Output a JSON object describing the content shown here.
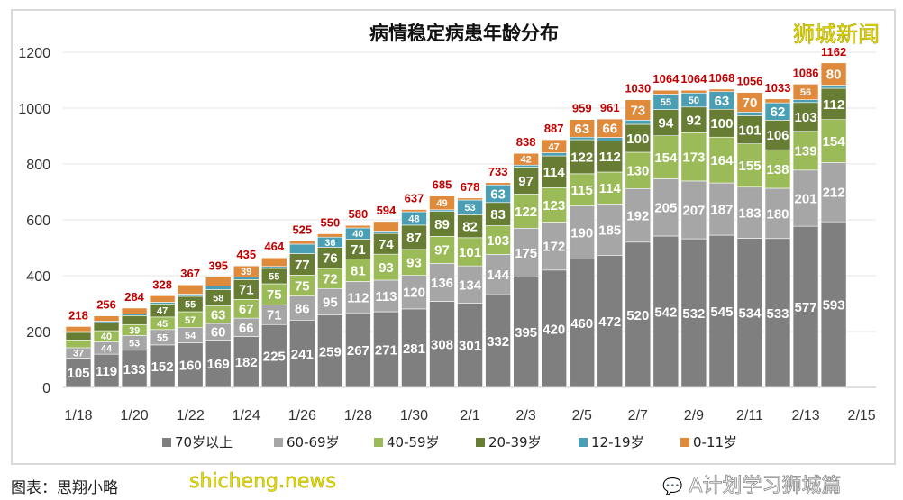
{
  "chart_data": {
    "type": "bar",
    "stacked": true,
    "title": "病情稳定病患年龄分布",
    "categories": [
      "1/18",
      "1/19",
      "1/20",
      "1/21",
      "1/22",
      "1/23",
      "1/24",
      "1/25",
      "1/26",
      "1/27",
      "1/28",
      "1/29",
      "1/30",
      "1/31",
      "2/1",
      "2/2",
      "2/3",
      "2/4",
      "2/5",
      "2/6",
      "2/7",
      "2/8",
      "2/9",
      "2/10",
      "2/11",
      "2/12",
      "2/13",
      "2/14"
    ],
    "x_tick_labels": [
      "1/18",
      "1/20",
      "1/22",
      "1/24",
      "1/26",
      "1/28",
      "1/30",
      "2/1",
      "2/3",
      "2/5",
      "2/7",
      "2/9",
      "2/11",
      "2/13",
      "2/15"
    ],
    "y_ticks": [
      0,
      200,
      400,
      600,
      800,
      1000,
      1200
    ],
    "ylim": [
      0,
      1200
    ],
    "grid": true,
    "legend_position": "bottom",
    "series": [
      {
        "name": "70岁以上",
        "color": "#7f7f7f",
        "values": [
          105,
          119,
          133,
          152,
          160,
          169,
          182,
          225,
          241,
          259,
          267,
          271,
          281,
          308,
          301,
          332,
          395,
          420,
          460,
          472,
          520,
          542,
          532,
          545,
          534,
          533,
          577,
          593
        ]
      },
      {
        "name": "60-69岁",
        "color": "#a6a6a6",
        "values": [
          37,
          44,
          53,
          55,
          54,
          60,
          66,
          71,
          86,
          95,
          112,
          113,
          120,
          136,
          134,
          144,
          175,
          172,
          190,
          185,
          192,
          205,
          207,
          187,
          183,
          180,
          201,
          212
        ]
      },
      {
        "name": "40-59岁",
        "color": "#9bbb59",
        "values": [
          28,
          40,
          39,
          45,
          57,
          63,
          67,
          75,
          75,
          72,
          81,
          93,
          93,
          97,
          101,
          103,
          122,
          123,
          115,
          114,
          130,
          154,
          173,
          164,
          155,
          138,
          139,
          154
        ]
      },
      {
        "name": "20-39岁",
        "color": "#667d33",
        "values": [
          27,
          29,
          32,
          47,
          55,
          58,
          71,
          55,
          77,
          76,
          71,
          74,
          87,
          89,
          82,
          83,
          97,
          114,
          122,
          112,
          100,
          94,
          92,
          100,
          101,
          106,
          103,
          112
        ]
      },
      {
        "name": "12-19岁",
        "color": "#4a9fb5",
        "values": [
          3,
          5,
          6,
          6,
          8,
          13,
          10,
          7,
          34,
          36,
          40,
          9,
          48,
          6,
          53,
          63,
          7,
          11,
          9,
          12,
          15,
          55,
          50,
          63,
          13,
          62,
          10,
          11
        ]
      },
      {
        "name": "0-11岁",
        "color": "#e08a3c",
        "values": [
          18,
          19,
          21,
          23,
          33,
          32,
          39,
          31,
          12,
          12,
          9,
          34,
          8,
          49,
          7,
          8,
          42,
          47,
          63,
          66,
          73,
          14,
          10,
          9,
          70,
          14,
          56,
          80
        ]
      }
    ],
    "totals": [
      218,
      256,
      284,
      328,
      367,
      395,
      435,
      464,
      525,
      550,
      580,
      594,
      637,
      685,
      678,
      733,
      838,
      887,
      959,
      961,
      1030,
      1064,
      1064,
      1068,
      1056,
      1033,
      1086,
      1162
    ],
    "total_label_color": "#c00000"
  },
  "watermarks": {
    "top_right": "狮城新闻",
    "bottom_left": "shicheng.news",
    "bottom_right": "A计划学习狮城篇",
    "caption": "图表：思翔小略"
  }
}
